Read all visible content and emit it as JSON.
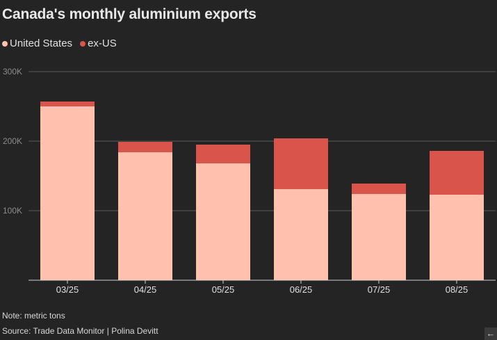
{
  "header": {
    "title": "Canada's monthly aluminium exports"
  },
  "colors": {
    "us": "#ffc1ae",
    "ex_us": "#d9544a",
    "grid": "#5a5a5a",
    "axis": "#d0d0d0"
  },
  "legend": {
    "items": [
      {
        "label": "United States",
        "color": "#ffc1ae"
      },
      {
        "label": "ex-US",
        "color": "#d9544a"
      }
    ]
  },
  "chart_data": {
    "type": "bar",
    "stacked": true,
    "title": "Canada's monthly aluminium exports",
    "xlabel": "",
    "ylabel": "",
    "categories": [
      "03/25",
      "04/25",
      "05/25",
      "06/25",
      "07/25",
      "08/25"
    ],
    "series": [
      {
        "name": "United States",
        "color": "#ffc1ae",
        "values": [
          250000,
          184000,
          168000,
          131000,
          124000,
          123000
        ]
      },
      {
        "name": "ex-US",
        "color": "#d9544a",
        "values": [
          7000,
          15000,
          27000,
          73000,
          15000,
          63000
        ]
      }
    ],
    "ylim": [
      0,
      300000
    ],
    "yticks": [
      100000,
      200000,
      300000
    ],
    "ytick_labels": [
      "100K",
      "200K",
      "300K"
    ],
    "grid": true,
    "legend_position": "top-left"
  },
  "footer": {
    "note": "Note: metric tons",
    "source": "Source: Trade Data Monitor | Polina Devitt"
  },
  "controls": {
    "arrow_icon": "←"
  }
}
